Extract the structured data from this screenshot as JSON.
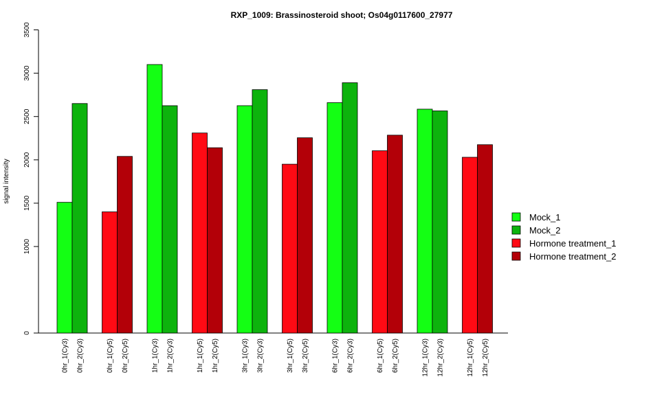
{
  "chart_data": {
    "type": "bar",
    "title": "RXP_1009: Brassinosteroid shoot; Os04g0117600_27977",
    "xlabel": "",
    "ylabel": "signal intensity",
    "y_ticks": [
      0,
      1000,
      1500,
      2000,
      2500,
      3000,
      3500
    ],
    "y_scale": "log-compressed",
    "legend_position": "right",
    "series": [
      {
        "name": "Mock_1",
        "color": "#14ff14"
      },
      {
        "name": "Mock_2",
        "color": "#0db30d"
      },
      {
        "name": "Hormone treatment_1",
        "color": "#ff0a14"
      },
      {
        "name": "Hormone treatment_2",
        "color": "#b30008"
      }
    ],
    "groups": [
      {
        "bars": [
          {
            "label": "0hr_1(Cy3)",
            "value": 1510,
            "series": 0
          },
          {
            "label": "0hr_2(Cy3)",
            "value": 2650,
            "series": 1
          }
        ]
      },
      {
        "bars": [
          {
            "label": "0hr_1(Cy5)",
            "value": 1400,
            "series": 2
          },
          {
            "label": "0hr_2(Cy5)",
            "value": 2040,
            "series": 3
          }
        ]
      },
      {
        "bars": [
          {
            "label": "1hr_1(Cy3)",
            "value": 3100,
            "series": 0
          },
          {
            "label": "1hr_2(Cy3)",
            "value": 2625,
            "series": 1
          }
        ]
      },
      {
        "bars": [
          {
            "label": "1hr_1(Cy5)",
            "value": 2310,
            "series": 2
          },
          {
            "label": "1hr_2(Cy5)",
            "value": 2140,
            "series": 3
          }
        ]
      },
      {
        "bars": [
          {
            "label": "3hr_1(Cy3)",
            "value": 2625,
            "series": 0
          },
          {
            "label": "3hr_2(Cy3)",
            "value": 2810,
            "series": 1
          }
        ]
      },
      {
        "bars": [
          {
            "label": "3hr_1(Cy5)",
            "value": 1950,
            "series": 2
          },
          {
            "label": "3hr_2(Cy5)",
            "value": 2255,
            "series": 3
          }
        ]
      },
      {
        "bars": [
          {
            "label": "6hr_1(Cy3)",
            "value": 2660,
            "series": 0
          },
          {
            "label": "6hr_2(Cy3)",
            "value": 2890,
            "series": 1
          }
        ]
      },
      {
        "bars": [
          {
            "label": "6hr_1(Cy5)",
            "value": 2105,
            "series": 2
          },
          {
            "label": "6hr_2(Cy5)",
            "value": 2285,
            "series": 3
          }
        ]
      },
      {
        "bars": [
          {
            "label": "12hr_1(Cy3)",
            "value": 2585,
            "series": 0
          },
          {
            "label": "12hr_2(Cy3)",
            "value": 2565,
            "series": 1
          }
        ]
      },
      {
        "bars": [
          {
            "label": "12hr_1(Cy5)",
            "value": 2030,
            "series": 2
          },
          {
            "label": "12hr_2(Cy5)",
            "value": 2175,
            "series": 3
          }
        ]
      }
    ]
  }
}
